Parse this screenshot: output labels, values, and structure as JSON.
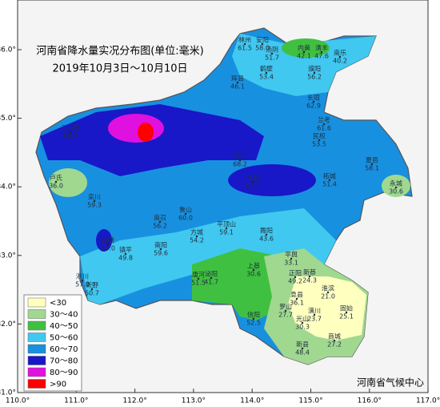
{
  "title": {
    "line1": "河南省降水量实况分布图(单位:毫米)",
    "line2": "2019年10月3日～10月10日"
  },
  "axes": {
    "lon": [
      "110.0°",
      "111.0°",
      "112.0°",
      "113.0°",
      "114.0°",
      "115.0°",
      "116.0°",
      "117.0°"
    ],
    "lat": [
      "36.0°",
      "35.0°",
      "34.0°",
      "33.0°",
      "32.0°",
      "31.0°"
    ]
  },
  "legend": [
    {
      "label": "<30",
      "color": "#ffffc0"
    },
    {
      "label": "30～40",
      "color": "#a0d890"
    },
    {
      "label": "40～50",
      "color": "#40c040"
    },
    {
      "label": "50～60",
      "color": "#40c8f0"
    },
    {
      "label": "60～70",
      "color": "#1890e0"
    },
    {
      "label": "70～80",
      "color": "#1818c8"
    },
    {
      "label": "80～90",
      "color": "#e010e0"
    },
    {
      "label": ">90",
      "color": "#ff0000"
    }
  ],
  "stations": [
    {
      "name": "林州",
      "value": "61.5"
    },
    {
      "name": "安阳",
      "value": "58.0"
    },
    {
      "name": "汤阴",
      "value": "51.7"
    },
    {
      "name": "内黄",
      "value": "42.1"
    },
    {
      "name": "清丰",
      "value": "47.6"
    },
    {
      "name": "南乐",
      "value": "40.2"
    },
    {
      "name": "鹤壁",
      "value": "53.4"
    },
    {
      "name": "濮阳",
      "value": "56.2"
    },
    {
      "name": "辉县",
      "value": "46.1"
    },
    {
      "name": "长垣",
      "value": "62.9"
    },
    {
      "name": "三门峡",
      "value": "68.3"
    },
    {
      "name": "卢氏",
      "value": "36.0"
    },
    {
      "name": "栾川",
      "value": "59.3"
    },
    {
      "name": "西峡",
      "value": "65.0"
    },
    {
      "name": "淅川",
      "value": "57.0"
    },
    {
      "name": "新野",
      "value": "50.7"
    },
    {
      "name": "镇平",
      "value": "49.8"
    },
    {
      "name": "南阳",
      "value": "59.6"
    },
    {
      "name": "方城",
      "value": "54.2"
    },
    {
      "name": "唐河",
      "value": "51.5"
    },
    {
      "name": "泌阳",
      "value": "41.7"
    },
    {
      "name": "南召",
      "value": "56.2"
    },
    {
      "name": "鲁山",
      "value": "60.0"
    },
    {
      "name": "平顶山",
      "value": "59.1"
    },
    {
      "name": "舞阳",
      "value": "43.6"
    },
    {
      "name": "上蔡",
      "value": "30.6"
    },
    {
      "name": "正阳",
      "value": "49.2"
    },
    {
      "name": "平舆",
      "value": "33.1"
    },
    {
      "name": "新蔡",
      "value": "24.3"
    },
    {
      "name": "信阳",
      "value": "52.5"
    },
    {
      "name": "罗山",
      "value": "27.7"
    },
    {
      "name": "息县",
      "value": "36.1"
    },
    {
      "name": "潢川",
      "value": "23.7"
    },
    {
      "name": "光山",
      "value": "30.3"
    },
    {
      "name": "淮滨",
      "value": "21.0"
    },
    {
      "name": "固始",
      "value": "25.1"
    },
    {
      "name": "商城",
      "value": "27.2"
    },
    {
      "name": "新县",
      "value": "48.4"
    },
    {
      "name": "永城",
      "value": "30.6"
    },
    {
      "name": "夏邑",
      "value": "58.1"
    },
    {
      "name": "民权",
      "value": "53.5"
    },
    {
      "name": "兰考",
      "value": "61.6"
    },
    {
      "name": "柘城",
      "value": "51.4"
    },
    {
      "name": "郑州",
      "value": "68.2"
    },
    {
      "name": "许昌",
      "value": "61.7"
    }
  ],
  "credit": "河南省气候中心"
}
